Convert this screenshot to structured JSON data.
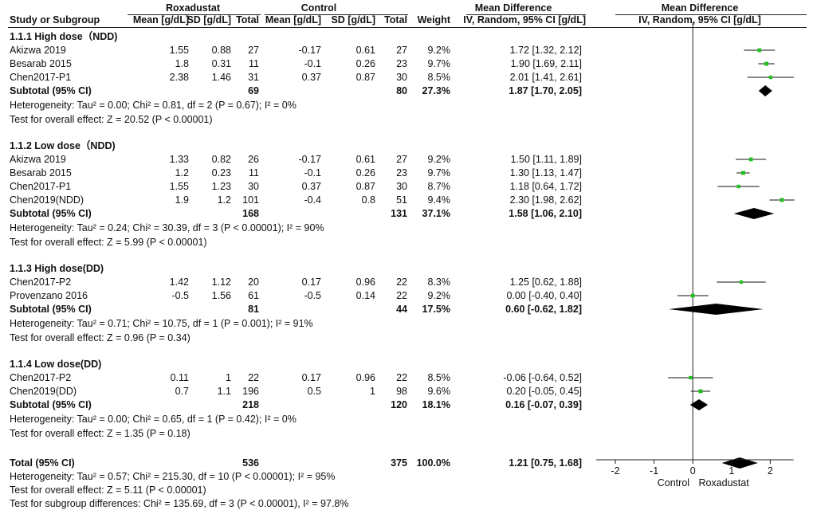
{
  "header": {
    "group_roxa": "Roxadustat",
    "group_ctrl": "Control",
    "md_title": "Mean Difference",
    "plot_title": "Mean Difference",
    "col_study": "Study or Subgroup",
    "col_mean1": "Mean [g/dL]",
    "col_sd1": "SD [g/dL]",
    "col_total1": "Total",
    "col_mean2": "Mean [g/dL]",
    "col_sd2": "SD [g/dL]",
    "col_total2": "Total",
    "col_weight": "Weight",
    "col_ci": "IV, Random, 95% CI [g/dL]",
    "plot_subtitle": "IV, Random, 95% CI [g/dL]"
  },
  "subgroups": [
    {
      "name": "1.1.1 High dose（NDD)",
      "studies": [
        {
          "study": "Akizwa 2019",
          "mean1": "1.55",
          "sd1": "0.88",
          "total1": "27",
          "mean2": "-0.17",
          "sd2": "0.61",
          "total2": "27",
          "weight": "9.2%",
          "ci": "1.72 [1.32, 2.12]"
        },
        {
          "study": "Besarab 2015",
          "mean1": "1.8",
          "sd1": "0.31",
          "total1": "11",
          "mean2": "-0.1",
          "sd2": "0.26",
          "total2": "23",
          "weight": "9.7%",
          "ci": "1.90 [1.69, 2.11]"
        },
        {
          "study": "Chen2017-P1",
          "mean1": "2.38",
          "sd1": "1.46",
          "total1": "31",
          "mean2": "0.37",
          "sd2": "0.87",
          "total2": "30",
          "weight": "8.5%",
          "ci": "2.01 [1.41, 2.61]"
        }
      ],
      "subtotal": {
        "label": "Subtotal (95% CI)",
        "total1": "69",
        "total2": "80",
        "weight": "27.3%",
        "ci": "1.87 [1.70, 2.05]"
      },
      "heterogeneity": "Heterogeneity: Tau² = 0.00; Chi² = 0.81, df = 2 (P = 0.67); I² = 0%",
      "overall": "Test for overall effect: Z = 20.52 (P < 0.00001)"
    },
    {
      "name": "1.1.2 Low dose（NDD)",
      "studies": [
        {
          "study": "Akizwa 2019",
          "mean1": "1.33",
          "sd1": "0.82",
          "total1": "26",
          "mean2": "-0.17",
          "sd2": "0.61",
          "total2": "27",
          "weight": "9.2%",
          "ci": "1.50 [1.11, 1.89]"
        },
        {
          "study": "Besarab 2015",
          "mean1": "1.2",
          "sd1": "0.23",
          "total1": "11",
          "mean2": "-0.1",
          "sd2": "0.26",
          "total2": "23",
          "weight": "9.7%",
          "ci": "1.30 [1.13, 1.47]"
        },
        {
          "study": "Chen2017-P1",
          "mean1": "1.55",
          "sd1": "1.23",
          "total1": "30",
          "mean2": "0.37",
          "sd2": "0.87",
          "total2": "30",
          "weight": "8.7%",
          "ci": "1.18 [0.64, 1.72]"
        },
        {
          "study": "Chen2019(NDD)",
          "mean1": "1.9",
          "sd1": "1.2",
          "total1": "101",
          "mean2": "-0.4",
          "sd2": "0.8",
          "total2": "51",
          "weight": "9.4%",
          "ci": "2.30 [1.98, 2.62]"
        }
      ],
      "subtotal": {
        "label": "Subtotal (95% CI)",
        "total1": "168",
        "total2": "131",
        "weight": "37.1%",
        "ci": "1.58 [1.06, 2.10]"
      },
      "heterogeneity": "Heterogeneity: Tau² = 0.24; Chi² = 30.39, df = 3 (P < 0.00001); I² = 90%",
      "overall": "Test for overall effect: Z = 5.99 (P < 0.00001)"
    },
    {
      "name": "1.1.3 High dose(DD)",
      "studies": [
        {
          "study": "Chen2017-P2",
          "mean1": "1.42",
          "sd1": "1.12",
          "total1": "20",
          "mean2": "0.17",
          "sd2": "0.96",
          "total2": "22",
          "weight": "8.3%",
          "ci": "1.25 [0.62, 1.88]"
        },
        {
          "study": "Provenzano 2016",
          "mean1": "-0.5",
          "sd1": "1.56",
          "total1": "61",
          "mean2": "-0.5",
          "sd2": "0.14",
          "total2": "22",
          "weight": "9.2%",
          "ci": "0.00 [-0.40, 0.40]"
        }
      ],
      "subtotal": {
        "label": "Subtotal (95% CI)",
        "total1": "81",
        "total2": "44",
        "weight": "17.5%",
        "ci": "0.60 [-0.62, 1.82]"
      },
      "heterogeneity": "Heterogeneity: Tau² = 0.71; Chi² = 10.75, df = 1 (P = 0.001); I² = 91%",
      "overall": "Test for overall effect: Z = 0.96 (P = 0.34)"
    },
    {
      "name": "1.1.4 Low dose(DD)",
      "studies": [
        {
          "study": "Chen2017-P2",
          "mean1": "0.11",
          "sd1": "1",
          "total1": "22",
          "mean2": "0.17",
          "sd2": "0.96",
          "total2": "22",
          "weight": "8.5%",
          "ci": "-0.06 [-0.64, 0.52]"
        },
        {
          "study": "Chen2019(DD)",
          "mean1": "0.7",
          "sd1": "1.1",
          "total1": "196",
          "mean2": "0.5",
          "sd2": "1",
          "total2": "98",
          "weight": "9.6%",
          "ci": "0.20 [-0.05, 0.45]"
        }
      ],
      "subtotal": {
        "label": "Subtotal (95% CI)",
        "total1": "218",
        "total2": "120",
        "weight": "18.1%",
        "ci": "0.16 [-0.07, 0.39]"
      },
      "heterogeneity": "Heterogeneity: Tau² = 0.00; Chi² = 0.65, df = 1 (P = 0.42); I² = 0%",
      "overall": "Test for overall effect: Z = 1.35 (P = 0.18)"
    }
  ],
  "total": {
    "label": "Total (95% CI)",
    "total1": "536",
    "total2": "375",
    "weight": "100.0%",
    "ci": "1.21 [0.75, 1.68]",
    "heterogeneity": "Heterogeneity: Tau² = 0.57; Chi² = 215.30, df = 10 (P < 0.00001); I² = 95%",
    "overall": "Test for overall effect: Z = 5.11 (P < 0.00001)",
    "subgroup_diff": "Test for subgroup differences: Chi² = 135.69, df = 3 (P < 0.00001), I² = 97.8%"
  },
  "axis": {
    "ticks": [
      "-2",
      "-1",
      "0",
      "1",
      "2"
    ],
    "favours_left": "Control",
    "favours_right": "Roxadustat"
  },
  "chart_data": {
    "type": "scatter",
    "subtype": "forest-plot",
    "x_range": [
      -2.5,
      2.6
    ],
    "x_ticks": [
      -2,
      -1,
      0,
      1,
      2
    ],
    "reference_line": 0,
    "marker_color": "#22c022",
    "diamond_color": "#000000",
    "studies": [
      {
        "group": 0,
        "study": "Akizwa 2019",
        "md": 1.72,
        "lo": 1.32,
        "hi": 2.12,
        "weight": 9.2
      },
      {
        "group": 0,
        "study": "Besarab 2015",
        "md": 1.9,
        "lo": 1.69,
        "hi": 2.11,
        "weight": 9.7
      },
      {
        "group": 0,
        "study": "Chen2017-P1",
        "md": 2.01,
        "lo": 1.41,
        "hi": 2.61,
        "weight": 8.5
      },
      {
        "group": 1,
        "study": "Akizwa 2019",
        "md": 1.5,
        "lo": 1.11,
        "hi": 1.89,
        "weight": 9.2
      },
      {
        "group": 1,
        "study": "Besarab 2015",
        "md": 1.3,
        "lo": 1.13,
        "hi": 1.47,
        "weight": 9.7
      },
      {
        "group": 1,
        "study": "Chen2017-P1",
        "md": 1.18,
        "lo": 0.64,
        "hi": 1.72,
        "weight": 8.7
      },
      {
        "group": 1,
        "study": "Chen2019(NDD)",
        "md": 2.3,
        "lo": 1.98,
        "hi": 2.62,
        "weight": 9.4
      },
      {
        "group": 2,
        "study": "Chen2017-P2",
        "md": 1.25,
        "lo": 0.62,
        "hi": 1.88,
        "weight": 8.3
      },
      {
        "group": 2,
        "study": "Provenzano 2016",
        "md": 0.0,
        "lo": -0.4,
        "hi": 0.4,
        "weight": 9.2
      },
      {
        "group": 3,
        "study": "Chen2017-P2",
        "md": -0.06,
        "lo": -0.64,
        "hi": 0.52,
        "weight": 8.5
      },
      {
        "group": 3,
        "study": "Chen2019(DD)",
        "md": 0.2,
        "lo": -0.05,
        "hi": 0.45,
        "weight": 9.6
      }
    ],
    "subtotals": [
      {
        "group": 0,
        "md": 1.87,
        "lo": 1.7,
        "hi": 2.05
      },
      {
        "group": 1,
        "md": 1.58,
        "lo": 1.06,
        "hi": 2.1
      },
      {
        "group": 2,
        "md": 0.6,
        "lo": -0.62,
        "hi": 1.82
      },
      {
        "group": 3,
        "md": 0.16,
        "lo": -0.07,
        "hi": 0.39
      }
    ],
    "overall": {
      "md": 1.21,
      "lo": 0.75,
      "hi": 1.68
    }
  }
}
